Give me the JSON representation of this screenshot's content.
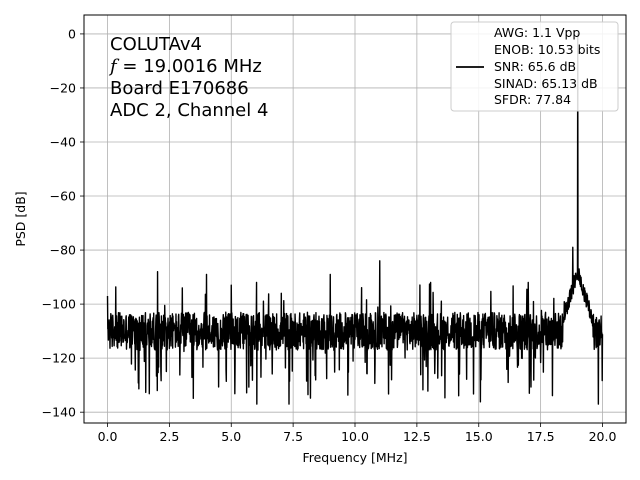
{
  "chart_data": {
    "type": "line",
    "xlabel": "Frequency [MHz]",
    "ylabel": "PSD [dB]",
    "xlim": [
      -0.95,
      20.95
    ],
    "ylim": [
      -144,
      7
    ],
    "xticks": [
      0.0,
      2.5,
      5.0,
      7.5,
      10.0,
      12.5,
      15.0,
      17.5,
      20.0
    ],
    "xtick_labels": [
      "0.0",
      "2.5",
      "5.0",
      "7.5",
      "10.0",
      "12.5",
      "15.0",
      "17.5",
      "20.0"
    ],
    "yticks": [
      0,
      -20,
      -40,
      -60,
      -80,
      -100,
      -120,
      -140
    ],
    "ytick_labels": [
      "0",
      "−20",
      "−40",
      "−60",
      "−80",
      "−100",
      "−120",
      "−140"
    ],
    "grid": true,
    "annotation_lines": [
      "COLUTAv4",
      "f = 19.0016 MHz",
      "Board E170686",
      "ADC 2, Channel 4"
    ],
    "legend": {
      "position": "top-right",
      "entries": [
        "AWG: 1.1 Vpp",
        "ENOB: 10.53 bits",
        "SNR: 65.6 dB",
        "SINAD: 65.13 dB",
        "SFDR: 77.84"
      ]
    },
    "series": [
      {
        "color": "#000000",
        "noise_floor_db": -110,
        "noise_range_db": [
          -137,
          -87
        ],
        "x_range": [
          0.0,
          20.0
        ],
        "peaks": [
          {
            "x": 0.0,
            "y": -97
          },
          {
            "x": 2.02,
            "y": -88
          },
          {
            "x": 3.02,
            "y": -94
          },
          {
            "x": 4.0,
            "y": -89
          },
          {
            "x": 5.0,
            "y": -93
          },
          {
            "x": 6.02,
            "y": -92
          },
          {
            "x": 7.02,
            "y": -96
          },
          {
            "x": 9.0,
            "y": -89
          },
          {
            "x": 11.0,
            "y": -84
          },
          {
            "x": 13.05,
            "y": -92
          },
          {
            "x": 17.0,
            "y": -92
          },
          {
            "x": 18.8,
            "y": -79
          },
          {
            "x": 19.0,
            "y": 0
          }
        ]
      }
    ]
  }
}
